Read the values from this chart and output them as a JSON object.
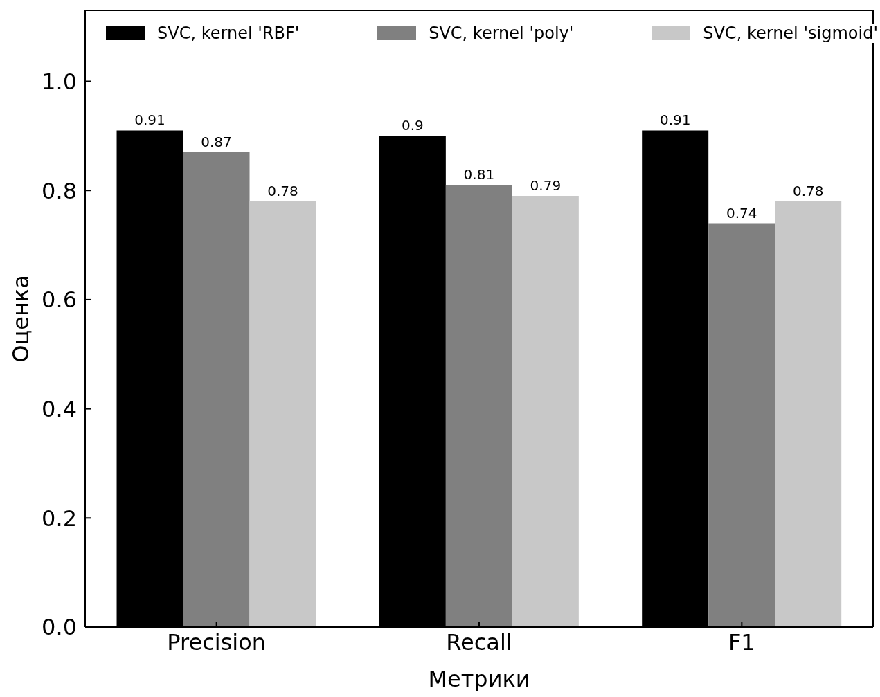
{
  "chart_data": {
    "type": "bar",
    "xlabel": "Метрики",
    "ylabel": "Оценка",
    "categories": [
      "Precision",
      "Recall",
      "F1"
    ],
    "series": [
      {
        "name": "SVC, kernel 'RBF'",
        "color": "#000000",
        "values": [
          0.91,
          0.9,
          0.91
        ]
      },
      {
        "name": "SVC, kernel 'poly'",
        "color": "#808080",
        "values": [
          0.87,
          0.81,
          0.74
        ]
      },
      {
        "name": "SVC, kernel 'sigmoid'",
        "color": "#c8c8c8",
        "values": [
          0.78,
          0.79,
          0.78
        ]
      }
    ],
    "ylim": [
      0,
      1.13
    ],
    "yticks": [
      {
        "value": 0,
        "label": "0.0"
      },
      {
        "value": 0.2,
        "label": "0.2"
      },
      {
        "value": 0.4,
        "label": "0.4"
      },
      {
        "value": 0.6,
        "label": "0.6"
      },
      {
        "value": 0.8,
        "label": "0.8"
      },
      {
        "value": 1,
        "label": "1.0"
      }
    ],
    "data_labels": true,
    "legend": "top",
    "grid": false
  }
}
